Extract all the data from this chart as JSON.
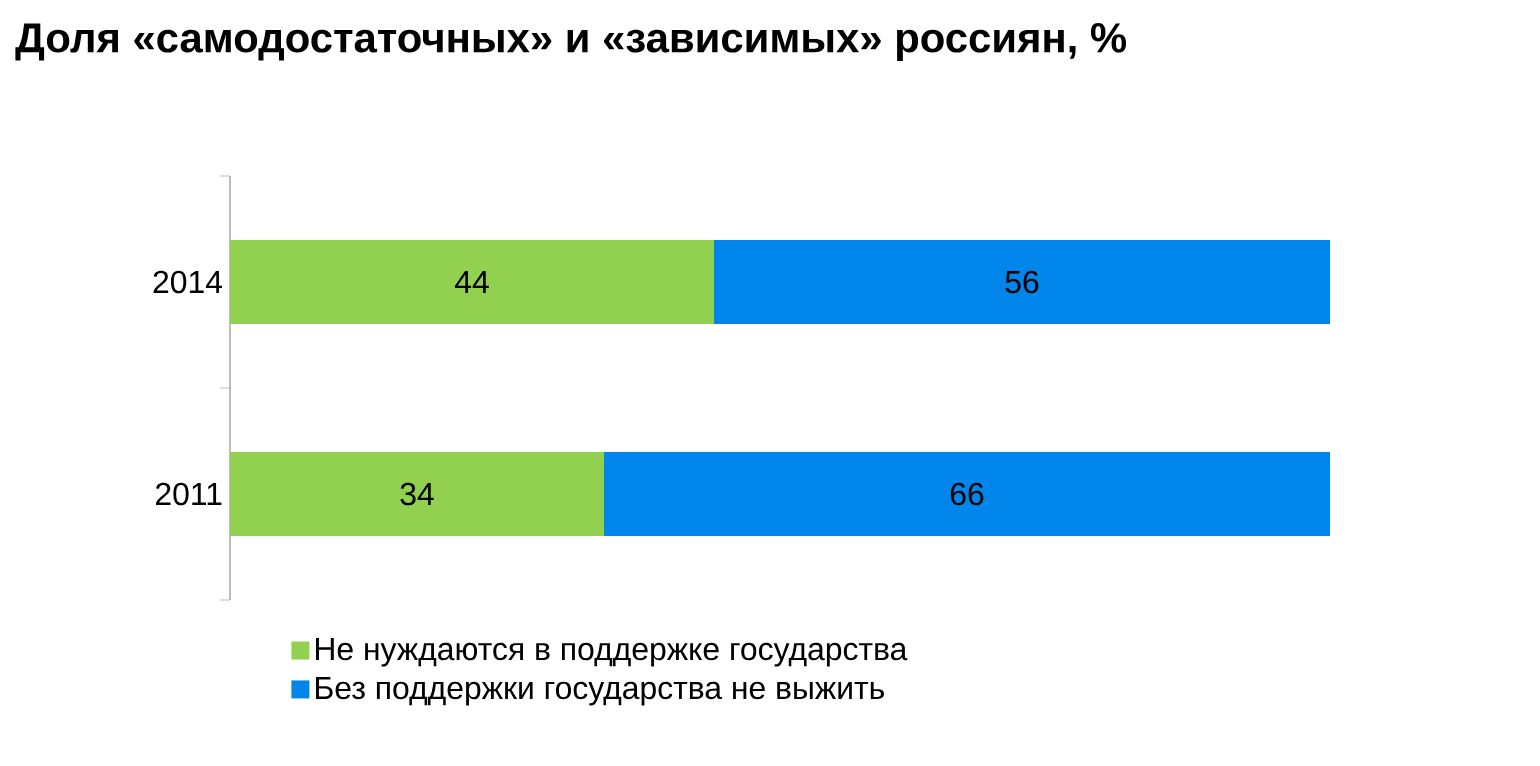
{
  "chart_data": {
    "type": "bar",
    "orientation": "horizontal",
    "stacked": true,
    "title": "Доля «самодостаточных» и «зависимых» россиян, %",
    "categories": [
      "2014",
      "2011"
    ],
    "series": [
      {
        "name": "Не нуждаются в поддержке государства",
        "color": "#92d050",
        "values": [
          44,
          34
        ]
      },
      {
        "name": "Без поддержки  государства не выжить",
        "color": "#0086ea",
        "values": [
          56,
          66
        ]
      }
    ],
    "data_labels": true,
    "legend": "bottom",
    "tick_labels": "y"
  }
}
